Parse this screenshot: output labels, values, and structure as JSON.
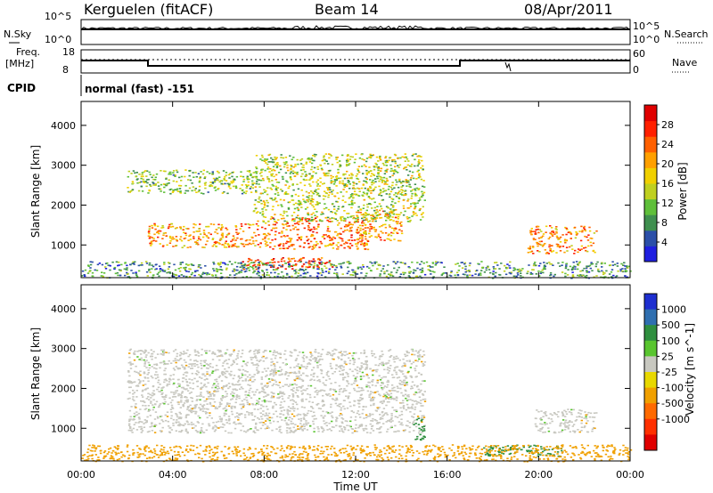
{
  "header": {
    "station": "Kerguelen (fitACF)",
    "beam": "Beam 14",
    "date": "08/Apr/2011"
  },
  "strips": {
    "nsky_label": "N.Sky",
    "nsky_ticks": [
      "10^5",
      "10^0"
    ],
    "nsearch_label": "N.Search",
    "nsearch_ticks": [
      "10^5",
      "10^0"
    ],
    "freq_label": "Freq.",
    "freq_unit": "[MHz]",
    "freq_ticks": [
      "18",
      "8"
    ],
    "nave_label": "Nave",
    "nave_ticks": [
      "60",
      "0"
    ],
    "cpid_label": "CPID",
    "cpid_value": "normal (fast) -151"
  },
  "colors": {
    "power": [
      "#1f1fe0",
      "#2b4fa8",
      "#3f8f4f",
      "#5fbf3a",
      "#bfd020",
      "#f0d000",
      "#ffa000",
      "#ff6000",
      "#ff2000",
      "#e00000"
    ],
    "velocity_bins": [
      "#1e2fd0",
      "#2f6fb0",
      "#2f8f3f",
      "#59c52f",
      "#c8c8c0",
      "#e8d800",
      "#f0a000",
      "#ff6a00",
      "#ff3000",
      "#e00000"
    ]
  },
  "chart_data": [
    {
      "type": "heatmap",
      "panel": "power",
      "title": "",
      "ylabel": "Slant Range [km]",
      "xlabel": "",
      "ylim": [
        180,
        4600
      ],
      "yticks": [
        "1000",
        "2000",
        "3000",
        "4000"
      ],
      "xlim": [
        0,
        24
      ],
      "colorbar_label": "Power [dB]",
      "colorbar_ticks": [
        "4",
        "8",
        "12",
        "16",
        "20",
        "24",
        "28"
      ],
      "colorbar_range": [
        0,
        32
      ],
      "echo_regions": [
        {
          "t0": 2.9,
          "t1": 8.0,
          "r0": 950,
          "r1": 1550,
          "value": 22
        },
        {
          "t0": 8.0,
          "t1": 12.5,
          "r0": 900,
          "r1": 1700,
          "value": 24
        },
        {
          "t0": 12.0,
          "t1": 14.0,
          "r0": 1100,
          "r1": 1900,
          "value": 22
        },
        {
          "t0": 2.0,
          "t1": 7.5,
          "r0": 2300,
          "r1": 2900,
          "value": 12
        },
        {
          "t0": 7.5,
          "t1": 15.0,
          "r0": 1600,
          "r1": 3300,
          "value": 14
        },
        {
          "t0": 7.0,
          "t1": 11.0,
          "r0": 400,
          "r1": 700,
          "value": 28
        },
        {
          "t0": 19.5,
          "t1": 22.5,
          "r0": 800,
          "r1": 1500,
          "value": 22
        },
        {
          "t0": 0.0,
          "t1": 24.0,
          "r0": 180,
          "r1": 600,
          "value": 8
        }
      ]
    },
    {
      "type": "heatmap",
      "panel": "velocity",
      "title": "",
      "ylabel": "Slant Range [km]",
      "xlabel": "Time UT",
      "ylim": [
        180,
        4600
      ],
      "yticks": [
        "1000",
        "2000",
        "3000",
        "4000"
      ],
      "xlim": [
        0,
        24
      ],
      "xticks": [
        "00:00",
        "04:00",
        "08:00",
        "12:00",
        "16:00",
        "20:00",
        "00:00"
      ],
      "colorbar_label": "Velocity [m s^-1]",
      "colorbar_ticks": [
        "1000",
        "500",
        "100",
        "25",
        "-25",
        "-100",
        "-500",
        "-1000"
      ],
      "echo_regions": [
        {
          "t0": 2.0,
          "t1": 15.0,
          "r0": 900,
          "r1": 3000,
          "value": 0
        },
        {
          "t0": 14.5,
          "t1": 15.0,
          "r0": 700,
          "r1": 1300,
          "value": 150
        },
        {
          "t0": 17.5,
          "t1": 21.0,
          "r0": 300,
          "r1": 600,
          "value": 150
        },
        {
          "t0": 19.8,
          "t1": 22.5,
          "r0": 900,
          "r1": 1500,
          "value": 0
        },
        {
          "t0": 0.0,
          "t1": 24.0,
          "r0": 180,
          "r1": 600,
          "value": -300
        }
      ]
    }
  ]
}
